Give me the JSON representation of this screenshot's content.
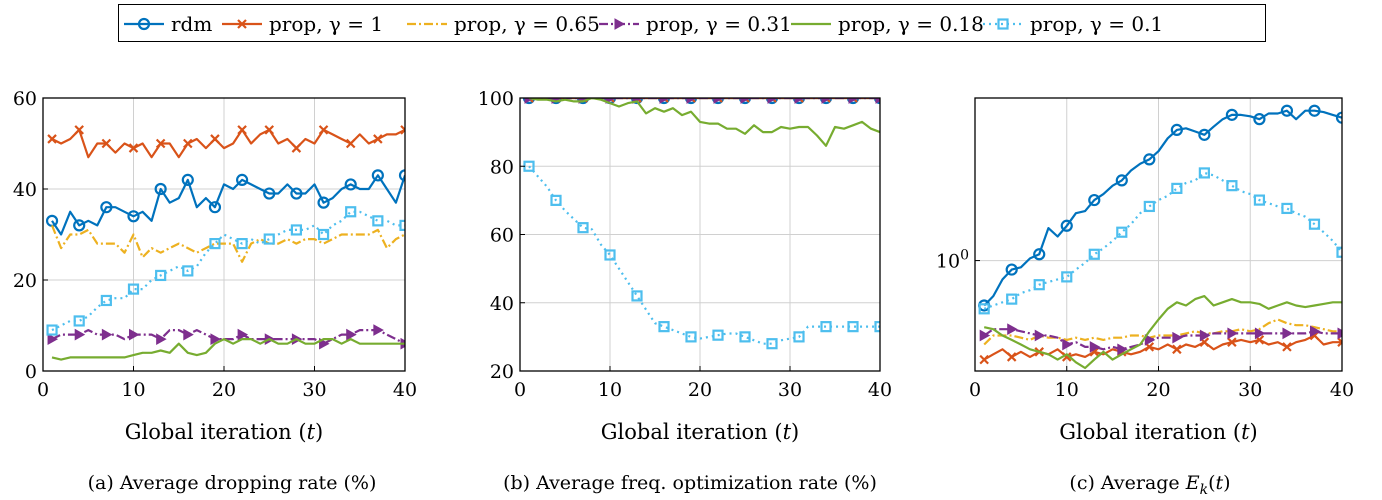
{
  "legend": [
    {
      "label": "rdm",
      "color": "#0072BD",
      "marker": "circle",
      "dash": "solid"
    },
    {
      "label": "prop, γ = 1",
      "color": "#D95319",
      "marker": "x",
      "dash": "solid"
    },
    {
      "label": "prop, γ = 0.65",
      "color": "#EDB120",
      "marker": "none",
      "dash": "dashdot"
    },
    {
      "label": "prop, γ = 0.31",
      "color": "#7E2F8E",
      "marker": "triangle",
      "dash": "dashdot"
    },
    {
      "label": "prop, γ = 0.18",
      "color": "#77AC30",
      "marker": "none",
      "dash": "solid"
    },
    {
      "label": "prop, γ = 0.1",
      "color": "#4DBEEE",
      "marker": "square",
      "dash": "dotted"
    }
  ],
  "chart_data": [
    {
      "type": "line",
      "caption": "(a) Average dropping rate (%)",
      "xlabel": "Global iteration (t)",
      "ylabel": "",
      "xlim": [
        0,
        40
      ],
      "ylim": [
        0,
        60
      ],
      "xticks": [
        0,
        10,
        20,
        30,
        40
      ],
      "yticks": [
        0,
        20,
        40,
        60
      ],
      "grid": true,
      "yscale": "linear",
      "x": [
        1,
        2,
        3,
        4,
        5,
        6,
        7,
        8,
        9,
        10,
        11,
        12,
        13,
        14,
        15,
        16,
        17,
        18,
        19,
        20,
        21,
        22,
        23,
        24,
        25,
        26,
        27,
        28,
        29,
        30,
        31,
        32,
        33,
        34,
        35,
        36,
        37,
        38,
        39,
        40
      ],
      "series": [
        {
          "name": "rdm",
          "values": [
            33,
            30,
            35,
            32,
            33,
            32,
            36,
            36,
            35,
            34,
            35,
            33,
            40,
            37,
            38,
            42,
            36,
            38,
            36,
            41,
            40,
            42,
            41,
            40,
            39,
            39,
            41,
            39,
            39,
            41,
            37,
            38,
            40,
            41,
            40,
            40,
            43,
            40,
            37,
            43
          ]
        },
        {
          "name": "prop, γ = 1",
          "values": [
            51,
            50,
            51,
            53,
            47,
            50,
            50,
            48,
            50,
            49,
            50,
            47,
            50,
            50,
            47,
            50,
            51,
            49,
            51,
            49,
            50,
            53,
            50,
            52,
            53,
            50,
            51,
            49,
            51,
            50,
            53,
            52,
            51,
            50,
            52,
            50,
            51,
            52,
            52,
            53
          ]
        },
        {
          "name": "prop, γ = 0.65",
          "values": [
            32,
            27,
            30,
            30,
            31,
            28,
            28,
            28,
            26,
            30,
            25,
            27,
            26,
            27,
            28,
            27,
            26,
            27,
            28,
            28,
            28,
            24,
            28,
            29,
            28,
            28,
            29,
            28,
            29,
            29,
            28,
            29,
            30,
            30,
            30,
            30,
            31,
            27,
            29,
            30
          ]
        },
        {
          "name": "prop, γ = 0.31",
          "values": [
            7,
            8,
            8,
            8,
            9,
            8,
            8,
            8,
            7,
            8,
            8,
            8,
            7,
            9,
            9,
            8,
            9,
            8,
            7,
            7,
            7,
            8,
            7,
            7,
            7,
            7,
            7,
            7,
            7,
            7,
            6,
            7,
            8,
            8,
            9,
            9,
            9,
            8,
            7,
            6
          ]
        },
        {
          "name": "prop, γ = 0.18",
          "values": [
            3,
            2.5,
            3,
            3,
            3,
            3,
            3,
            3,
            3,
            3.5,
            4,
            4,
            4.5,
            4,
            6,
            4,
            3.5,
            4,
            6,
            7,
            6,
            7,
            7,
            6,
            7,
            6,
            6,
            7,
            6,
            6,
            7,
            7,
            6,
            7,
            6,
            6,
            6,
            6,
            6,
            6
          ]
        },
        {
          "name": "prop, γ = 0.1",
          "values": [
            9,
            10,
            11,
            11,
            12,
            14,
            15.5,
            16,
            16,
            18,
            18,
            20,
            21,
            22,
            23,
            22,
            23,
            26,
            28,
            30,
            29,
            28,
            29,
            28,
            29,
            30,
            31,
            31,
            31,
            32,
            30,
            32,
            33,
            35,
            35,
            34,
            33,
            33,
            32,
            32
          ]
        }
      ]
    },
    {
      "type": "line",
      "caption": "(b) Average freq. optimization rate (%)",
      "xlabel": "Global iteration (t)",
      "ylabel": "",
      "xlim": [
        0,
        40
      ],
      "ylim": [
        20,
        100
      ],
      "xticks": [
        0,
        10,
        20,
        30,
        40
      ],
      "yticks": [
        20,
        40,
        60,
        80,
        100
      ],
      "grid": true,
      "yscale": "linear",
      "x": [
        1,
        2,
        3,
        4,
        5,
        6,
        7,
        8,
        9,
        10,
        11,
        12,
        13,
        14,
        15,
        16,
        17,
        18,
        19,
        20,
        21,
        22,
        23,
        24,
        25,
        26,
        27,
        28,
        29,
        30,
        31,
        32,
        33,
        34,
        35,
        36,
        37,
        38,
        39,
        40
      ],
      "series": [
        {
          "name": "rdm",
          "values": [
            100,
            100,
            100,
            100,
            100,
            100,
            100,
            100,
            100,
            100,
            100,
            100,
            100,
            100,
            100,
            100,
            100,
            100,
            100,
            100,
            100,
            100,
            100,
            100,
            100,
            100,
            100,
            100,
            100,
            100,
            100,
            100,
            100,
            100,
            100,
            100,
            100,
            100,
            100,
            100
          ]
        },
        {
          "name": "prop, γ = 1",
          "values": [
            100,
            100,
            100,
            100,
            100,
            100,
            100,
            100,
            100,
            100,
            100,
            100,
            100,
            100,
            100,
            100,
            100,
            100,
            100,
            100,
            100,
            100,
            100,
            100,
            100,
            100,
            100,
            100,
            100,
            100,
            100,
            100,
            100,
            100,
            100,
            100,
            100,
            100,
            100,
            100
          ]
        },
        {
          "name": "prop, γ = 0.65",
          "values": [
            100,
            100,
            100,
            100,
            100,
            100,
            100,
            100,
            100,
            100,
            100,
            100,
            100,
            100,
            100,
            100,
            100,
            100,
            100,
            100,
            100,
            100,
            100,
            100,
            100,
            100,
            100,
            100,
            100,
            100,
            100,
            100,
            100,
            100,
            100,
            100,
            100,
            100,
            100,
            100
          ]
        },
        {
          "name": "prop, γ = 0.31",
          "values": [
            100,
            100,
            100,
            100,
            100,
            100,
            100,
            100,
            100,
            100,
            100,
            100,
            100,
            100,
            100,
            100,
            100,
            100,
            100,
            100,
            100,
            100,
            100,
            100,
            100,
            100,
            100,
            100,
            100,
            100,
            100,
            100,
            100,
            100,
            100,
            100,
            100,
            100,
            100,
            100
          ]
        },
        {
          "name": "prop, γ = 0.18",
          "values": [
            100,
            99.5,
            99.5,
            99,
            99.5,
            99,
            99,
            100,
            99.5,
            98.5,
            97.5,
            98.5,
            99,
            95.5,
            97,
            96,
            97,
            95,
            96,
            93,
            92.5,
            92.5,
            91,
            91,
            89.5,
            92,
            90,
            90,
            91.5,
            91,
            91.5,
            91.5,
            89,
            86,
            91.5,
            91,
            92,
            93,
            91,
            90
          ]
        },
        {
          "name": "prop, γ = 0.1",
          "values": [
            80,
            77,
            74,
            70,
            67,
            64.5,
            62,
            61.5,
            57,
            54,
            50,
            46,
            42,
            38,
            34,
            33,
            32,
            31,
            30,
            29.5,
            30,
            30.5,
            31,
            31,
            30,
            29,
            28,
            28,
            29,
            29.5,
            30,
            33,
            33,
            33,
            33,
            33,
            33,
            33,
            33,
            33
          ]
        }
      ]
    },
    {
      "type": "line",
      "caption": "(c) Average E_k(t)",
      "xlabel": "Global iteration (t)",
      "ylabel": "",
      "xlim": [
        0,
        40
      ],
      "ylim": [
        0.36,
        4.5
      ],
      "xticks": [
        0,
        10,
        20,
        30,
        40
      ],
      "yticks": [
        1
      ],
      "ytick_labels": [
        "10^0"
      ],
      "grid": true,
      "yscale": "log",
      "x": [
        1,
        2,
        3,
        4,
        5,
        6,
        7,
        8,
        9,
        10,
        11,
        12,
        13,
        14,
        15,
        16,
        17,
        18,
        19,
        20,
        21,
        22,
        23,
        24,
        25,
        26,
        27,
        28,
        29,
        30,
        31,
        32,
        33,
        34,
        35,
        36,
        37,
        38,
        39,
        40
      ],
      "series": [
        {
          "name": "rdm",
          "values": [
            0.66,
            0.72,
            0.84,
            0.92,
            0.94,
            1.02,
            1.06,
            1.35,
            1.25,
            1.38,
            1.55,
            1.58,
            1.75,
            1.85,
            2.0,
            2.1,
            2.3,
            2.45,
            2.55,
            2.75,
            3.1,
            3.35,
            3.4,
            3.3,
            3.2,
            3.45,
            3.7,
            3.85,
            3.85,
            3.8,
            3.7,
            3.9,
            3.9,
            4.0,
            3.7,
            4.0,
            4.0,
            3.95,
            3.85,
            3.75
          ]
        },
        {
          "name": "prop, γ = 1",
          "values": [
            0.4,
            0.42,
            0.44,
            0.41,
            0.43,
            0.41,
            0.43,
            0.42,
            0.44,
            0.41,
            0.42,
            0.41,
            0.43,
            0.42,
            0.44,
            0.43,
            0.42,
            0.43,
            0.45,
            0.44,
            0.46,
            0.44,
            0.46,
            0.45,
            0.47,
            0.44,
            0.46,
            0.47,
            0.48,
            0.47,
            0.48,
            0.46,
            0.47,
            0.45,
            0.47,
            0.48,
            0.5,
            0.46,
            0.47,
            0.47
          ]
        },
        {
          "name": "prop, γ = 0.65",
          "values": [
            0.46,
            0.5,
            0.5,
            0.5,
            0.49,
            0.48,
            0.5,
            0.49,
            0.49,
            0.48,
            0.49,
            0.48,
            0.49,
            0.48,
            0.49,
            0.49,
            0.5,
            0.5,
            0.49,
            0.5,
            0.5,
            0.5,
            0.51,
            0.52,
            0.51,
            0.51,
            0.52,
            0.52,
            0.53,
            0.52,
            0.53,
            0.56,
            0.58,
            0.56,
            0.55,
            0.55,
            0.54,
            0.53,
            0.52,
            0.52
          ]
        },
        {
          "name": "prop, γ = 0.31",
          "values": [
            0.5,
            0.53,
            0.53,
            0.53,
            0.52,
            0.51,
            0.5,
            0.5,
            0.49,
            0.46,
            0.47,
            0.45,
            0.45,
            0.44,
            0.45,
            0.44,
            0.45,
            0.46,
            0.48,
            0.49,
            0.49,
            0.49,
            0.5,
            0.5,
            0.5,
            0.51,
            0.51,
            0.51,
            0.51,
            0.51,
            0.51,
            0.51,
            0.51,
            0.51,
            0.51,
            0.51,
            0.52,
            0.51,
            0.51,
            0.51
          ]
        },
        {
          "name": "prop, γ = 0.18",
          "values": [
            0.54,
            0.53,
            0.5,
            0.48,
            0.46,
            0.44,
            0.43,
            0.42,
            0.4,
            0.42,
            0.39,
            0.37,
            0.4,
            0.43,
            0.4,
            0.42,
            0.44,
            0.46,
            0.52,
            0.58,
            0.64,
            0.68,
            0.66,
            0.7,
            0.72,
            0.66,
            0.68,
            0.7,
            0.68,
            0.68,
            0.67,
            0.64,
            0.66,
            0.68,
            0.66,
            0.65,
            0.66,
            0.67,
            0.68,
            0.68
          ]
        },
        {
          "name": "prop, γ = 0.1",
          "values": [
            0.64,
            0.66,
            0.68,
            0.7,
            0.74,
            0.76,
            0.8,
            0.82,
            0.84,
            0.86,
            0.92,
            0.98,
            1.06,
            1.12,
            1.2,
            1.3,
            1.4,
            1.55,
            1.65,
            1.75,
            1.82,
            1.95,
            2.05,
            2.1,
            2.25,
            2.2,
            2.1,
            2.0,
            1.9,
            1.85,
            1.75,
            1.7,
            1.65,
            1.62,
            1.55,
            1.5,
            1.4,
            1.3,
            1.2,
            1.08
          ]
        }
      ]
    }
  ]
}
